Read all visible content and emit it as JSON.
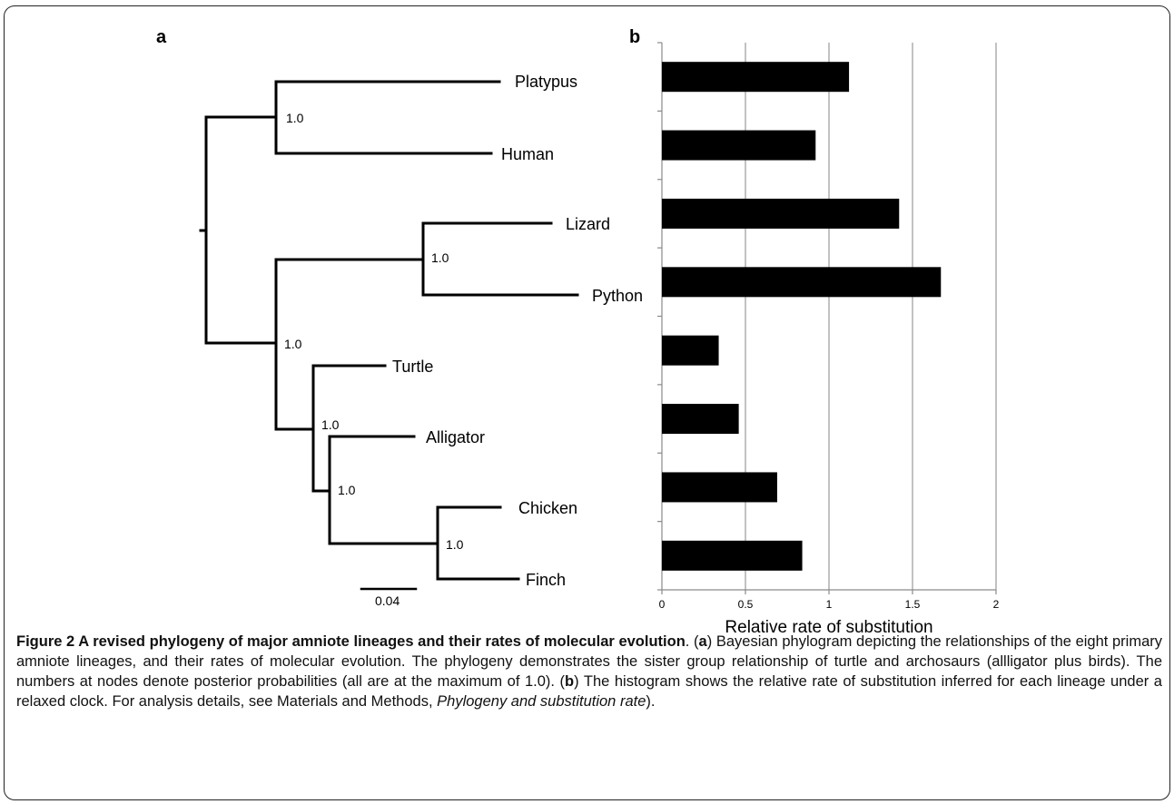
{
  "figure": {
    "panel_a_label": "a",
    "panel_b_label": "b",
    "tree": {
      "taxa": [
        "Platypus",
        "Human",
        "Lizard",
        "Python",
        "Turtle",
        "Alligator",
        "Chicken",
        "Finch"
      ],
      "node_support": [
        "1.0",
        "1.0",
        "1.0",
        "1.0",
        "1.0",
        "1.0"
      ],
      "scale_bar_label": "0.04"
    }
  },
  "chart_data": {
    "type": "bar",
    "orientation": "horizontal",
    "categories": [
      "Platypus",
      "Human",
      "Lizard",
      "Python",
      "Turtle",
      "Alligator",
      "Chicken",
      "Finch"
    ],
    "values": [
      1.12,
      0.92,
      1.42,
      1.67,
      0.34,
      0.46,
      0.69,
      0.84
    ],
    "xlim": [
      0,
      2
    ],
    "xticks": [
      "0",
      "0.5",
      "1",
      "1.5",
      "2"
    ],
    "xlabel": "Relative rate of substitution",
    "grid": true
  },
  "caption": {
    "title": "Figure 2 A revised phylogeny of major amniote lineages and their rates of molecular evolution",
    "p1": ". (",
    "a": "a",
    "p2": ") Bayesian phylogram depicting the relationships of the eight primary amniote lineages, and their rates of molecular evolution. The phylogeny demonstrates the sister group relationship of turtle and archosaurs (allligator plus birds). The numbers at nodes denote posterior probabilities (all are at the maximum of 1.0). (",
    "b": "b",
    "p3": ") The histogram shows the relative rate of substitution inferred for each lineage under a relaxed clock. For analysis details, see Materials and Methods, ",
    "italic": "Phylogeny and substitution rate",
    "p4": ")."
  }
}
